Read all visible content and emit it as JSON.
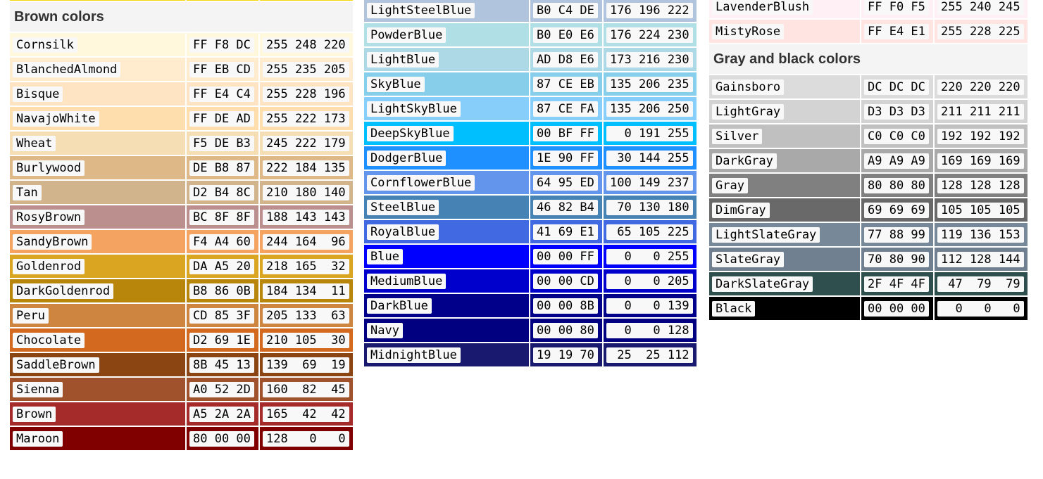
{
  "columns": [
    {
      "id": "left",
      "strip": true,
      "sections": [
        {
          "title": "Brown colors",
          "rows": [
            {
              "name": "Cornsilk",
              "hex": "FF F8 DC",
              "rgb": "255 248 220",
              "color": "#FFF8DC"
            },
            {
              "name": "BlanchedAlmond",
              "hex": "FF EB CD",
              "rgb": "255 235 205",
              "color": "#FFEBCD"
            },
            {
              "name": "Bisque",
              "hex": "FF E4 C4",
              "rgb": "255 228 196",
              "color": "#FFE4C4"
            },
            {
              "name": "NavajoWhite",
              "hex": "FF DE AD",
              "rgb": "255 222 173",
              "color": "#FFDEAD"
            },
            {
              "name": "Wheat",
              "hex": "F5 DE B3",
              "rgb": "245 222 179",
              "color": "#F5DEB3"
            },
            {
              "name": "Burlywood",
              "hex": "DE B8 87",
              "rgb": "222 184 135",
              "color": "#DEB887"
            },
            {
              "name": "Tan",
              "hex": "D2 B4 8C",
              "rgb": "210 180 140",
              "color": "#D2B48C"
            },
            {
              "name": "RosyBrown",
              "hex": "BC 8F 8F",
              "rgb": "188 143 143",
              "color": "#BC8F8F"
            },
            {
              "name": "SandyBrown",
              "hex": "F4 A4 60",
              "rgb": "244 164  96",
              "color": "#F4A460"
            },
            {
              "name": "Goldenrod",
              "hex": "DA A5 20",
              "rgb": "218 165  32",
              "color": "#DAA520"
            },
            {
              "name": "DarkGoldenrod",
              "hex": "B8 86 0B",
              "rgb": "184 134  11",
              "color": "#B8860B"
            },
            {
              "name": "Peru",
              "hex": "CD 85 3F",
              "rgb": "205 133  63",
              "color": "#CD853F"
            },
            {
              "name": "Chocolate",
              "hex": "D2 69 1E",
              "rgb": "210 105  30",
              "color": "#D2691E"
            },
            {
              "name": "SaddleBrown",
              "hex": "8B 45 13",
              "rgb": "139  69  19",
              "color": "#8B4513"
            },
            {
              "name": "Sienna",
              "hex": "A0 52 2D",
              "rgb": "160  82  45",
              "color": "#A0522D"
            },
            {
              "name": "Brown",
              "hex": "A5 2A 2A",
              "rgb": "165  42  42",
              "color": "#A52A2A"
            },
            {
              "name": "Maroon",
              "hex": "80 00 00",
              "rgb": "128   0   0",
              "color": "#800000"
            }
          ]
        }
      ]
    },
    {
      "id": "middle",
      "strip": false,
      "sections": [
        {
          "title": "",
          "rows": [
            {
              "name": "LightSteelBlue",
              "hex": "B0 C4 DE",
              "rgb": "176 196 222",
              "color": "#B0C4DE"
            },
            {
              "name": "PowderBlue",
              "hex": "B0 E0 E6",
              "rgb": "176 224 230",
              "color": "#B0E0E6"
            },
            {
              "name": "LightBlue",
              "hex": "AD D8 E6",
              "rgb": "173 216 230",
              "color": "#ADD8E6"
            },
            {
              "name": "SkyBlue",
              "hex": "87 CE EB",
              "rgb": "135 206 235",
              "color": "#87CEEB"
            },
            {
              "name": "LightSkyBlue",
              "hex": "87 CE FA",
              "rgb": "135 206 250",
              "color": "#87CEFA"
            },
            {
              "name": "DeepSkyBlue",
              "hex": "00 BF FF",
              "rgb": "  0 191 255",
              "color": "#00BFFF"
            },
            {
              "name": "DodgerBlue",
              "hex": "1E 90 FF",
              "rgb": " 30 144 255",
              "color": "#1E90FF"
            },
            {
              "name": "CornflowerBlue",
              "hex": "64 95 ED",
              "rgb": "100 149 237",
              "color": "#6495ED"
            },
            {
              "name": "SteelBlue",
              "hex": "46 82 B4",
              "rgb": " 70 130 180",
              "color": "#4682B4"
            },
            {
              "name": "RoyalBlue",
              "hex": "41 69 E1",
              "rgb": " 65 105 225",
              "color": "#4169E1"
            },
            {
              "name": "Blue",
              "hex": "00 00 FF",
              "rgb": "  0   0 255",
              "color": "#0000FF"
            },
            {
              "name": "MediumBlue",
              "hex": "00 00 CD",
              "rgb": "  0   0 205",
              "color": "#0000CD"
            },
            {
              "name": "DarkBlue",
              "hex": "00 00 8B",
              "rgb": "  0   0 139",
              "color": "#00008B"
            },
            {
              "name": "Navy",
              "hex": "00 00 80",
              "rgb": "  0   0 128",
              "color": "#000080"
            },
            {
              "name": "MidnightBlue",
              "hex": "19 19 70",
              "rgb": " 25  25 112",
              "color": "#191970"
            }
          ]
        }
      ]
    },
    {
      "id": "right",
      "strip": false,
      "sections": [
        {
          "title": "",
          "rows": [
            {
              "name": "LavenderBlush",
              "hex": "FF F0 F5",
              "rgb": "255 240 245",
              "color": "#FFF0F5"
            },
            {
              "name": "MistyRose",
              "hex": "FF E4 E1",
              "rgb": "255 228 225",
              "color": "#FFE4E1"
            }
          ]
        },
        {
          "title": "Gray and black colors",
          "rows": [
            {
              "name": "Gainsboro",
              "hex": "DC DC DC",
              "rgb": "220 220 220",
              "color": "#DCDCDC"
            },
            {
              "name": "LightGray",
              "hex": "D3 D3 D3",
              "rgb": "211 211 211",
              "color": "#D3D3D3"
            },
            {
              "name": "Silver",
              "hex": "C0 C0 C0",
              "rgb": "192 192 192",
              "color": "#C0C0C0"
            },
            {
              "name": "DarkGray",
              "hex": "A9 A9 A9",
              "rgb": "169 169 169",
              "color": "#A9A9A9"
            },
            {
              "name": "Gray",
              "hex": "80 80 80",
              "rgb": "128 128 128",
              "color": "#808080"
            },
            {
              "name": "DimGray",
              "hex": "69 69 69",
              "rgb": "105 105 105",
              "color": "#696969"
            },
            {
              "name": "LightSlateGray",
              "hex": "77 88 99",
              "rgb": "119 136 153",
              "color": "#778899"
            },
            {
              "name": "SlateGray",
              "hex": "70 80 90",
              "rgb": "112 128 144",
              "color": "#708090"
            },
            {
              "name": "DarkSlateGray",
              "hex": "2F 4F 4F",
              "rgb": " 47  79  79",
              "color": "#2F4F4F"
            },
            {
              "name": "Black",
              "hex": "00 00 00",
              "rgb": "  0   0   0",
              "color": "#000000"
            }
          ]
        }
      ]
    }
  ]
}
